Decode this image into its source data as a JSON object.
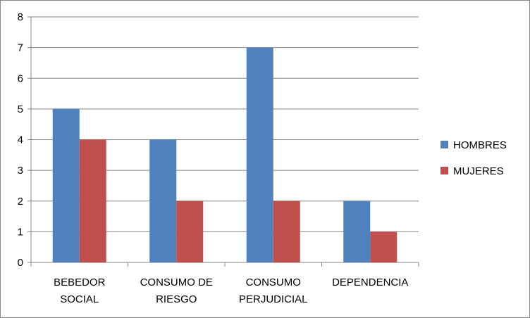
{
  "chart_data": {
    "type": "bar",
    "categories": [
      [
        "BEBEDOR",
        "SOCIAL"
      ],
      [
        "CONSUMO DE",
        "RIESGO"
      ],
      [
        "CONSUMO",
        "PERJUDICIAL"
      ],
      [
        "DEPENDENCIA"
      ]
    ],
    "series": [
      {
        "name": "HOMBRES",
        "color": "#4F81BD",
        "values": [
          5,
          4,
          7,
          2
        ]
      },
      {
        "name": "MUJERES",
        "color": "#C0504D",
        "values": [
          4,
          2,
          2,
          1
        ]
      }
    ],
    "yticks": [
      "0",
      "1",
      "2",
      "3",
      "4",
      "5",
      "6",
      "7",
      "8"
    ],
    "ylim": [
      0,
      8
    ],
    "grid": true,
    "legend_position": "right"
  }
}
